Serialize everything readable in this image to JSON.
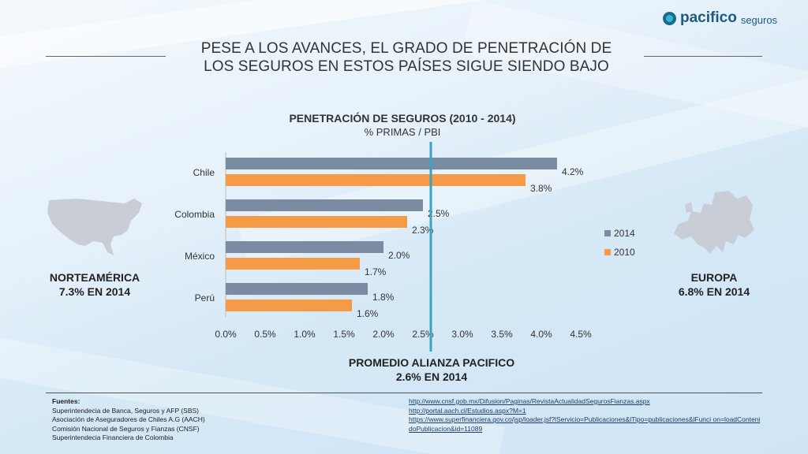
{
  "brand": {
    "name": "pacifico",
    "suffix": "seguros"
  },
  "slide_title": {
    "line1": "PESE A LOS AVANCES, EL GRADO DE PENETRACIÓN DE",
    "line2": "LOS SEGUROS EN ESTOS PAÍSES SIGUE SIENDO BAJO"
  },
  "chart_data": {
    "type": "bar",
    "orientation": "horizontal",
    "title": "PENETRACIÓN DE SEGUROS (2010 - 2014)",
    "subtitle": "% PRIMAS / PBI",
    "categories": [
      "Chile",
      "Colombia",
      "México",
      "Perú"
    ],
    "series": [
      {
        "name": "2014",
        "values": [
          4.2,
          2.5,
          2.0,
          1.8
        ],
        "labels": [
          "4.2%",
          "2.5%",
          "2.0%",
          "1.8%"
        ],
        "color": "#7a8ba2"
      },
      {
        "name": "2010",
        "values": [
          3.8,
          2.3,
          1.7,
          1.6
        ],
        "labels": [
          "3.8%",
          "2.3%",
          "1.7%",
          "1.6%"
        ],
        "color": "#f59a46"
      }
    ],
    "xlim": [
      0,
      4.5
    ],
    "xticks": [
      "0.0%",
      "0.5%",
      "1.0%",
      "1.5%",
      "2.0%",
      "2.5%",
      "3.0%",
      "3.5%",
      "4.0%",
      "4.5%"
    ],
    "reference_line": {
      "value": 2.6,
      "color": "#3aa3c4"
    },
    "grid": false,
    "legend": "right"
  },
  "average": {
    "line1": "PROMEDIO ALIANZA PACIFICO",
    "line2": "2.6% EN 2014"
  },
  "regions": {
    "north_america": {
      "name": "NORTEAMÉRICA",
      "value": "7.3% EN 2014"
    },
    "europe": {
      "name": "EUROPA",
      "value": "6.8% EN 2014"
    }
  },
  "sources": {
    "heading": "Fuentes:",
    "items": [
      "Superintendecia de Banca, Seguros y AFP (SBS)",
      "Asociación de Aseguradores de Chiles A.G (AACH)",
      "Comisión Nacional de Seguros y Fianzas (CNSF)",
      "Superintendecia Financiera de Colombia"
    ],
    "links": [
      "http://www.cnsf.gob.mx/Difusion/Paginas/RevistaActualidadSegurosFianzas.aspx",
      "http://portal.aach.cl/Estudios.aspx?M=1",
      "https://www.superfinanciera.gov.co/jsp/loader.jsf?lServicio=Publicaciones&lTipo=publicaciones&lFunci on=loadContenidoPublicacion&id=11089"
    ]
  },
  "colors": {
    "text": "#333333",
    "brand": "#1a5b7f"
  }
}
